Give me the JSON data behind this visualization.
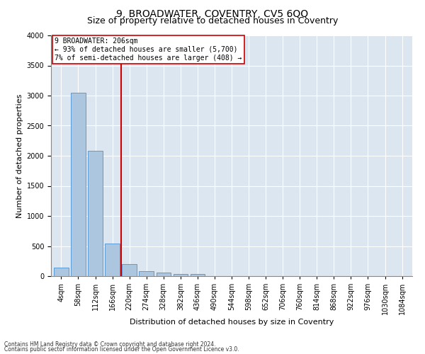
{
  "title": "9, BROADWATER, COVENTRY, CV5 6QQ",
  "subtitle": "Size of property relative to detached houses in Coventry",
  "xlabel": "Distribution of detached houses by size in Coventry",
  "ylabel": "Number of detached properties",
  "bin_labels": [
    "4sqm",
    "58sqm",
    "112sqm",
    "166sqm",
    "220sqm",
    "274sqm",
    "328sqm",
    "382sqm",
    "436sqm",
    "490sqm",
    "544sqm",
    "598sqm",
    "652sqm",
    "706sqm",
    "760sqm",
    "814sqm",
    "868sqm",
    "922sqm",
    "976sqm",
    "1030sqm",
    "1084sqm"
  ],
  "bar_values": [
    140,
    3050,
    2080,
    545,
    200,
    80,
    55,
    40,
    35,
    0,
    0,
    0,
    0,
    0,
    0,
    0,
    0,
    0,
    0,
    0,
    0
  ],
  "bar_color": "#adc6e0",
  "bar_edge_color": "#5b9bd5",
  "vline_x": 3.5,
  "vline_color": "#cc0000",
  "annotation_text": "9 BROADWATER: 206sqm\n← 93% of detached houses are smaller (5,700)\n7% of semi-detached houses are larger (408) →",
  "annotation_box_color": "#ffffff",
  "annotation_box_edge": "#cc0000",
  "ylim": [
    0,
    4000
  ],
  "yticks": [
    0,
    500,
    1000,
    1500,
    2000,
    2500,
    3000,
    3500,
    4000
  ],
  "background_color": "#dce6f1",
  "footer_line1": "Contains HM Land Registry data © Crown copyright and database right 2024.",
  "footer_line2": "Contains public sector information licensed under the Open Government Licence v3.0.",
  "title_fontsize": 10,
  "subtitle_fontsize": 9,
  "label_fontsize": 8,
  "tick_fontsize": 7,
  "annotation_fontsize": 7,
  "footer_fontsize": 5.5
}
